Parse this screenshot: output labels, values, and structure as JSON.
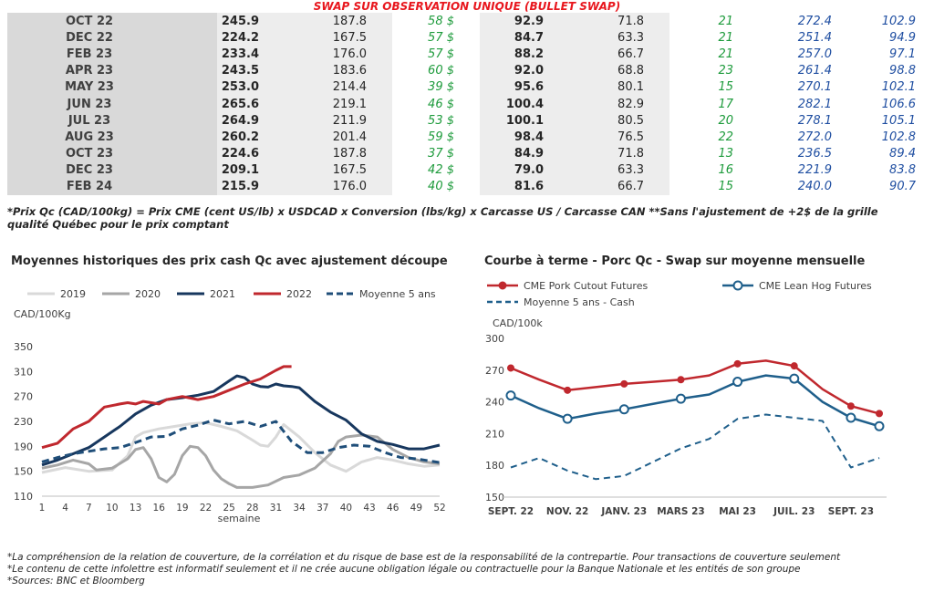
{
  "banner": "SWAP SUR OBSERVATION UNIQUE (BULLET SWAP)",
  "table": {
    "rows": [
      [
        "OCT 22",
        "245.9",
        "187.8",
        "58 $",
        "92.9",
        "71.8",
        "21",
        "272.4",
        "102.9"
      ],
      [
        "DEC 22",
        "224.2",
        "167.5",
        "57 $",
        "84.7",
        "63.3",
        "21",
        "251.4",
        "94.9"
      ],
      [
        "FEB 23",
        "233.4",
        "176.0",
        "57 $",
        "88.2",
        "66.7",
        "21",
        "257.0",
        "97.1"
      ],
      [
        "APR 23",
        "243.5",
        "183.6",
        "60 $",
        "92.0",
        "68.8",
        "23",
        "261.4",
        "98.8"
      ],
      [
        "MAY 23",
        "253.0",
        "214.4",
        "39 $",
        "95.6",
        "80.1",
        "15",
        "270.1",
        "102.1"
      ],
      [
        "JUN 23",
        "265.6",
        "219.1",
        "46 $",
        "100.4",
        "82.9",
        "17",
        "282.1",
        "106.6"
      ],
      [
        "JUL 23",
        "264.9",
        "211.9",
        "53 $",
        "100.1",
        "80.5",
        "20",
        "278.1",
        "105.1"
      ],
      [
        "AUG 23",
        "260.2",
        "201.4",
        "59 $",
        "98.4",
        "76.5",
        "22",
        "272.0",
        "102.8"
      ],
      [
        "OCT 23",
        "224.6",
        "187.8",
        "37 $",
        "84.9",
        "71.8",
        "13",
        "236.5",
        "89.4"
      ],
      [
        "DEC 23",
        "209.1",
        "167.5",
        "42 $",
        "79.0",
        "63.3",
        "16",
        "221.9",
        "83.8"
      ],
      [
        "FEB 24",
        "215.9",
        "176.0",
        "40 $",
        "81.6",
        "66.7",
        "15",
        "240.0",
        "90.7"
      ]
    ],
    "note": "*Prix Qc (CAD/100kg) = Prix CME (cent US/lb) x USDCAD x Conversion (lbs/kg) x Carcasse US / Carcasse CAN **Sans l'ajustement de +2$ de la grille qualité Québec pour le prix comptant"
  },
  "chart_data": [
    {
      "type": "line",
      "title": "Moyennes historiques des prix cash Qc avec ajustement découpe",
      "ylabel": "CAD/100Kg",
      "xlabel": "semaine",
      "ylim": [
        110,
        350
      ],
      "xlim": [
        1,
        52
      ],
      "yticks": [
        "110",
        "150",
        "190",
        "230",
        "270",
        "310",
        "350"
      ],
      "xticks": [
        "1",
        "4",
        "7",
        "10",
        "13",
        "16",
        "19",
        "22",
        "25",
        "28",
        "31",
        "34",
        "37",
        "40",
        "43",
        "46",
        "49",
        "52"
      ],
      "grid": false,
      "legend_position": "top",
      "series": [
        {
          "name": "2019",
          "color": "#d9d9d9",
          "dash": false,
          "x": [
            1,
            4,
            7,
            10,
            12,
            13,
            14,
            16,
            18,
            20,
            22,
            24,
            26,
            28,
            29,
            30,
            31,
            32,
            34,
            36,
            38,
            40,
            42,
            44,
            46,
            48,
            50,
            52
          ],
          "values": [
            148,
            156,
            150,
            152,
            175,
            205,
            212,
            218,
            222,
            226,
            228,
            222,
            215,
            200,
            192,
            190,
            205,
            225,
            205,
            180,
            160,
            150,
            165,
            172,
            168,
            162,
            158,
            160
          ]
        },
        {
          "name": "2020",
          "color": "#a6a6a6",
          "dash": false,
          "x": [
            1,
            3,
            5,
            7,
            8,
            10,
            12,
            13,
            14,
            15,
            16,
            17,
            18,
            19,
            20,
            21,
            22,
            23,
            24,
            25,
            26,
            28,
            30,
            32,
            34,
            36,
            38,
            39,
            40,
            42,
            44,
            46,
            48,
            50,
            52
          ],
          "values": [
            155,
            160,
            168,
            162,
            152,
            155,
            170,
            185,
            188,
            170,
            140,
            133,
            145,
            175,
            190,
            188,
            175,
            152,
            138,
            130,
            124,
            124,
            128,
            140,
            144,
            155,
            178,
            198,
            205,
            208,
            205,
            185,
            172,
            165,
            162
          ]
        },
        {
          "name": "2021",
          "color": "#17375e",
          "dash": false,
          "x": [
            1,
            3,
            5,
            7,
            9,
            11,
            13,
            15,
            17,
            19,
            21,
            23,
            25,
            26,
            27,
            28,
            29,
            30,
            31,
            32,
            33,
            34,
            36,
            38,
            40,
            42,
            44,
            46,
            48,
            50,
            52
          ],
          "values": [
            160,
            168,
            178,
            188,
            205,
            222,
            242,
            256,
            265,
            268,
            272,
            278,
            295,
            303,
            300,
            290,
            286,
            285,
            290,
            287,
            286,
            284,
            262,
            245,
            232,
            210,
            198,
            193,
            186,
            186,
            192
          ]
        },
        {
          "name": "2022",
          "color": "#c0282e",
          "dash": false,
          "x": [
            1,
            3,
            5,
            7,
            9,
            11,
            12,
            13,
            14,
            15,
            16,
            17,
            19,
            21,
            23,
            25,
            27,
            29,
            31,
            32,
            33
          ],
          "values": [
            188,
            195,
            218,
            230,
            253,
            258,
            260,
            258,
            262,
            260,
            258,
            265,
            270,
            265,
            270,
            280,
            290,
            298,
            312,
            318,
            318
          ]
        },
        {
          "name": "Moyenne 5 ans",
          "color": "#1f4e79",
          "dash": true,
          "x": [
            1,
            3,
            5,
            7,
            9,
            11,
            13,
            15,
            17,
            19,
            21,
            23,
            25,
            27,
            29,
            31,
            33,
            35,
            37,
            39,
            41,
            43,
            45,
            47,
            49,
            51,
            52
          ],
          "values": [
            165,
            172,
            178,
            182,
            186,
            188,
            196,
            205,
            206,
            218,
            224,
            232,
            226,
            230,
            222,
            230,
            198,
            180,
            180,
            188,
            192,
            190,
            180,
            172,
            170,
            166,
            164
          ]
        }
      ]
    },
    {
      "type": "line",
      "title": "Courbe à terme - Porc Qc - Swap sur moyenne mensuelle",
      "ylabel": "CAD/100k",
      "ylim": [
        150,
        300
      ],
      "yticks": [
        "150",
        "180",
        "210",
        "240",
        "270",
        "300"
      ],
      "categories": [
        "SEPT. 22",
        "OCT. 22",
        "NOV. 22",
        "DÉC. 22",
        "JANV. 23",
        "FÉVR. 23",
        "MARS 23",
        "AVR. 23",
        "MAI 23",
        "JUIN 23",
        "JUIL. 23",
        "AOÛT 23",
        "SEPT. 23",
        "OCT. 23"
      ],
      "xtick_labels": [
        "SEPT. 22",
        "NOV. 22",
        "JANV. 23",
        "MARS 23",
        "MAI 23",
        "JUIL. 23",
        "SEPT. 23"
      ],
      "grid": false,
      "legend_position": "top",
      "series": [
        {
          "name": "CME Pork Cutout Futures",
          "color": "#c0282e",
          "marker": "filled",
          "values": [
            272,
            261,
            251,
            254,
            257,
            259,
            261,
            265,
            276,
            279,
            274,
            252,
            236,
            229
          ]
        },
        {
          "name": "CME Lean Hog Futures",
          "color": "#1f5f8b",
          "marker": "open",
          "values": [
            246,
            234,
            224,
            229,
            233,
            238,
            243,
            247,
            259,
            265,
            262,
            240,
            225,
            217
          ]
        },
        {
          "name": "Moyenne 5 ans - Cash",
          "color": "#1f5f8b",
          "marker": "none",
          "dash": true,
          "values": [
            178,
            187,
            175,
            167,
            170,
            183,
            196,
            205,
            224,
            228,
            225,
            222,
            178,
            187
          ]
        }
      ]
    }
  ],
  "footnotes": [
    "*La compréhension de la relation de couverture, de la corrélation et du risque de base est de la responsabilité de la contrepartie. Pour transactions de couverture seulement",
    "*Le contenu de cette infolettre est informatif seulement et il ne crée aucune obligation légale ou contractuelle pour la Banque Nationale et les entités de son groupe",
    "*Sources: BNC et Bloomberg"
  ]
}
